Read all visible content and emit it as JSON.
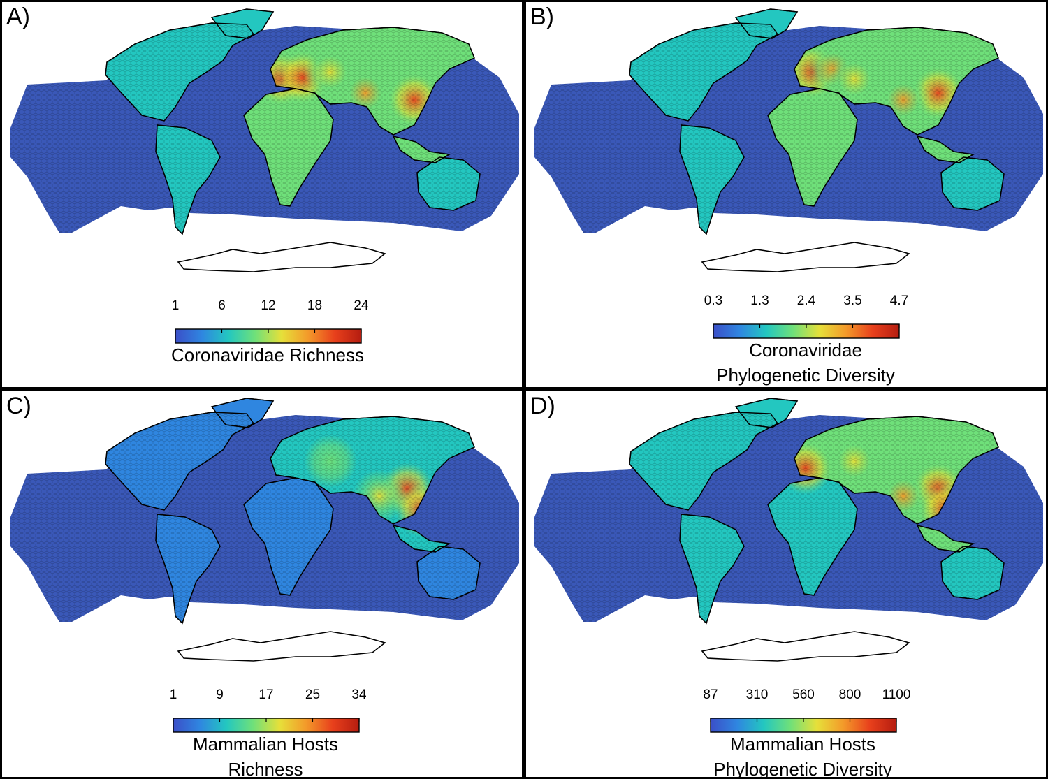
{
  "panels": [
    {
      "label": "A)",
      "legend_lines": [
        "Coronaviridae Richness"
      ],
      "ticks": [
        "1",
        "6",
        "12",
        "18",
        "24"
      ]
    },
    {
      "label": "B)",
      "legend_lines": [
        "Coronaviridae",
        "Phylogenetic Diversity"
      ],
      "ticks": [
        "0.3",
        "1.3",
        "2.4",
        "3.5",
        "4.7"
      ]
    },
    {
      "label": "C)",
      "legend_lines": [
        "Mammalian Hosts",
        "Richness"
      ],
      "ticks": [
        "1",
        "9",
        "17",
        "25",
        "34"
      ]
    },
    {
      "label": "D)",
      "legend_lines": [
        "Mammalian Hosts",
        "Phylogenetic Diversity"
      ],
      "ticks": [
        "87",
        "310",
        "560",
        "800",
        "1100"
      ]
    }
  ],
  "colors": {
    "ocean": "#3a58b8",
    "palette": [
      "#3b4fc8",
      "#2f86e0",
      "#23c7c0",
      "#6fe07a",
      "#e6e03a",
      "#f39a2a",
      "#e8401c",
      "#b51d10"
    ],
    "antarctica": "#ffffff",
    "outline": "#000000"
  }
}
